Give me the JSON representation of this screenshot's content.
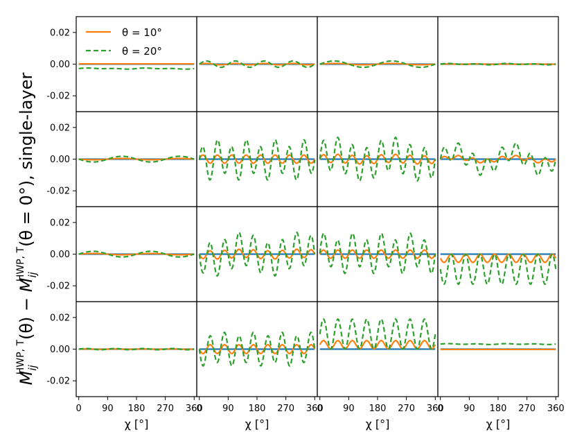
{
  "figure": {
    "ylabel": "M_ij^{HWP,T}(θ) − M_ij^{HWP,T}(θ = 0°), single-layer",
    "ylabel_parts": {
      "main1": "M",
      "sub1": "ij",
      "sup1": "HWP, T",
      "mid": "(θ) − ",
      "main2": "M",
      "sub2": "ij",
      "sup2": "HWP, T",
      "tail": "(θ = 0°), single-layer"
    },
    "xlabel": "χ [°]"
  },
  "chart_data": {
    "type": "line",
    "layout": "4x4 grid of subplots, shared axes",
    "x_range": [
      -8,
      368
    ],
    "ylim": [
      -0.03,
      0.03
    ],
    "x_ticks": [
      0,
      90,
      180,
      270,
      360
    ],
    "x_tick_labels": [
      "0",
      "90",
      "180",
      "270",
      "360"
    ],
    "y_ticks": [
      0.02,
      0.0,
      -0.02
    ],
    "y_tick_labels": [
      "0.02",
      "0.00",
      "-0.02"
    ],
    "xlabel": "χ [°]",
    "ylabel": "M_ij^{HWP,T}(θ) − M_ij^{HWP,T}(θ = 0°), single-layer",
    "legend": {
      "location": "upper left of first panel",
      "entries": [
        "θ = 10°",
        "θ = 20°"
      ]
    },
    "series": [
      {
        "name": "",
        "color": "#1f77b4",
        "style": "solid"
      },
      {
        "name": "θ = 10°",
        "color": "#ff7f0e",
        "style": "solid"
      },
      {
        "name": "θ = 20°",
        "color": "#2ca02c",
        "style": "dashed"
      }
    ],
    "panels": [
      {
        "row": 0,
        "col": 0,
        "s1": {
          "c": 0.0002,
          "a2": 0,
          "a4": 0,
          "b": 0.0
        },
        "s2": {
          "c": -0.0028,
          "a2": 0.0002,
          "a4": 0.0002,
          "b": 0.0
        }
      },
      {
        "row": 0,
        "col": 1,
        "s1": {
          "c": 0,
          "a2": 0,
          "a4": 0.0004,
          "b": 0.0
        },
        "s2": {
          "c": 0,
          "a2": 0,
          "a4": 0.002,
          "b": 0.0
        }
      },
      {
        "row": 0,
        "col": 2,
        "s1": {
          "c": 0,
          "a2": 0.0004,
          "a4": 0,
          "b": 0.0
        },
        "s2": {
          "c": 0,
          "a2": 0.002,
          "a4": 0,
          "b": 0.0
        }
      },
      {
        "row": 0,
        "col": 3,
        "s1": {
          "c": 0,
          "a2": 0,
          "a4": 0.0001,
          "b": 0.0
        },
        "s2": {
          "c": 0,
          "a2": 0.0002,
          "a4": 0.0003,
          "b": 0.0
        }
      },
      {
        "row": 1,
        "col": 0,
        "s1": {
          "c": 0,
          "a2": -0.0004,
          "a4": 0,
          "b": 0.0
        },
        "s2": {
          "c": 0,
          "a2": -0.0018,
          "a4": 0,
          "b": 0.0
        }
      },
      {
        "row": 1,
        "col": 1,
        "s1": {
          "c": 0,
          "a2": 0,
          "a4": 0,
          "b": 0.0026
        },
        "s2": {
          "c": -0.0005,
          "a2": 0,
          "a4": -0.003,
          "b": 0.0105
        }
      },
      {
        "row": 1,
        "col": 2,
        "s1": {
          "c": 0,
          "a2": 0.0005,
          "a4": 0,
          "b": 0.0026
        },
        "s2": {
          "c": 0,
          "a2": 0.0035,
          "a4": 0,
          "b": 0.0105
        }
      },
      {
        "row": 1,
        "col": 3,
        "s1": {
          "c": 0,
          "a2": 0.0012,
          "a4": 0,
          "b": 0.0012
        },
        "s2": {
          "c": 0,
          "a2": 0.005,
          "a4": 0,
          "b": 0.0055
        }
      },
      {
        "row": 2,
        "col": 0,
        "s1": {
          "c": 0,
          "a2": 0.0004,
          "a4": 0,
          "b": 0.0
        },
        "s2": {
          "c": 0,
          "a2": 0.0018,
          "a4": 0,
          "b": 0.0
        }
      },
      {
        "row": 2,
        "col": 1,
        "s1": {
          "c": 0,
          "a2": -0.0005,
          "a4": 0,
          "b": -0.0026
        },
        "s2": {
          "c": 0,
          "a2": -0.0035,
          "a4": 0,
          "b": -0.0105
        }
      },
      {
        "row": 2,
        "col": 2,
        "s1": {
          "c": 0,
          "a2": 0,
          "a4": 0,
          "b": 0.0026
        },
        "s2": {
          "c": 0.0005,
          "a2": 0,
          "a4": 0.003,
          "b": 0.0105
        }
      },
      {
        "row": 2,
        "col": 3,
        "s1": {
          "c": -0.0026,
          "a2": 0,
          "a4": 0,
          "b": -0.0026
        },
        "s2": {
          "c": -0.0095,
          "a2": 0,
          "a4": 0,
          "b": -0.0095
        }
      },
      {
        "row": 3,
        "col": 0,
        "s1": {
          "c": 0,
          "a2": 0,
          "a4": 0.0001,
          "b": 0.0
        },
        "s2": {
          "c": 0,
          "a2": 0,
          "a4": 0.0004,
          "b": 0.0
        }
      },
      {
        "row": 3,
        "col": 1,
        "s1": {
          "c": 0,
          "a2": 0,
          "a4": 0,
          "b": -0.0028
        },
        "s2": {
          "c": 0,
          "a2": 0,
          "a4": -0.0015,
          "b": -0.0095
        }
      },
      {
        "row": 3,
        "col": 2,
        "s1": {
          "c": 0.0028,
          "a2": 0,
          "a4": 0,
          "b": 0.0026
        },
        "s2": {
          "c": 0.0095,
          "a2": 0,
          "a4": 0,
          "b": 0.0095
        }
      },
      {
        "row": 3,
        "col": 3,
        "s1": {
          "c": -0.0002,
          "a2": 0,
          "a4": 0,
          "b": 0.0
        },
        "s2": {
          "c": 0.0032,
          "a2": 0.0001,
          "a4": 0.0002,
          "b": 0.0
        }
      }
    ]
  }
}
